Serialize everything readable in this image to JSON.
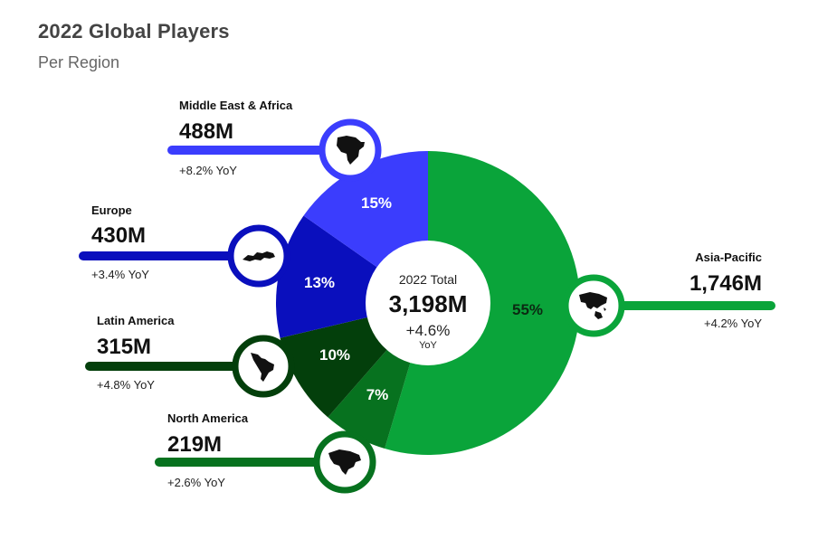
{
  "header": {
    "title": "2022 Global Players",
    "subtitle": "Per Region"
  },
  "center": {
    "label": "2022 Total",
    "value": "3,198M",
    "yoy": "+4.6%",
    "yoy_unit": "YoY"
  },
  "chart_data": {
    "type": "pie",
    "title": "2022 Global Players",
    "subtitle": "Per Region",
    "unit": "M",
    "total": 3198,
    "segments": [
      {
        "name": "Asia-Pacific",
        "value": 1746,
        "value_label": "1,746M",
        "percent": 55,
        "percent_label": "55%",
        "yoy": "+4.2% YoY",
        "color": "#0aa43a",
        "pct_color": "#0b2a12",
        "icon": "asia-pacific-map-icon"
      },
      {
        "name": "North America",
        "value": 219,
        "value_label": "219M",
        "percent": 7,
        "percent_label": "7%",
        "yoy": "+2.6% YoY",
        "color": "#07721f",
        "pct_color": "#ffffff",
        "icon": "north-america-map-icon"
      },
      {
        "name": "Latin America",
        "value": 315,
        "value_label": "315M",
        "percent": 10,
        "percent_label": "10%",
        "yoy": "+4.8% YoY",
        "color": "#033f0b",
        "pct_color": "#ffffff",
        "icon": "latin-america-map-icon"
      },
      {
        "name": "Europe",
        "value": 430,
        "value_label": "430M",
        "percent": 13,
        "percent_label": "13%",
        "yoy": "+3.4% YoY",
        "color": "#0a0fbd",
        "pct_color": "#ffffff",
        "icon": "europe-map-icon"
      },
      {
        "name": "Middle East & Africa",
        "value": 488,
        "value_label": "488M",
        "percent": 15,
        "percent_label": "15%",
        "yoy": "+8.2% YoY",
        "color": "#3b3dfd",
        "pct_color": "#ffffff",
        "icon": "africa-map-icon"
      }
    ]
  }
}
